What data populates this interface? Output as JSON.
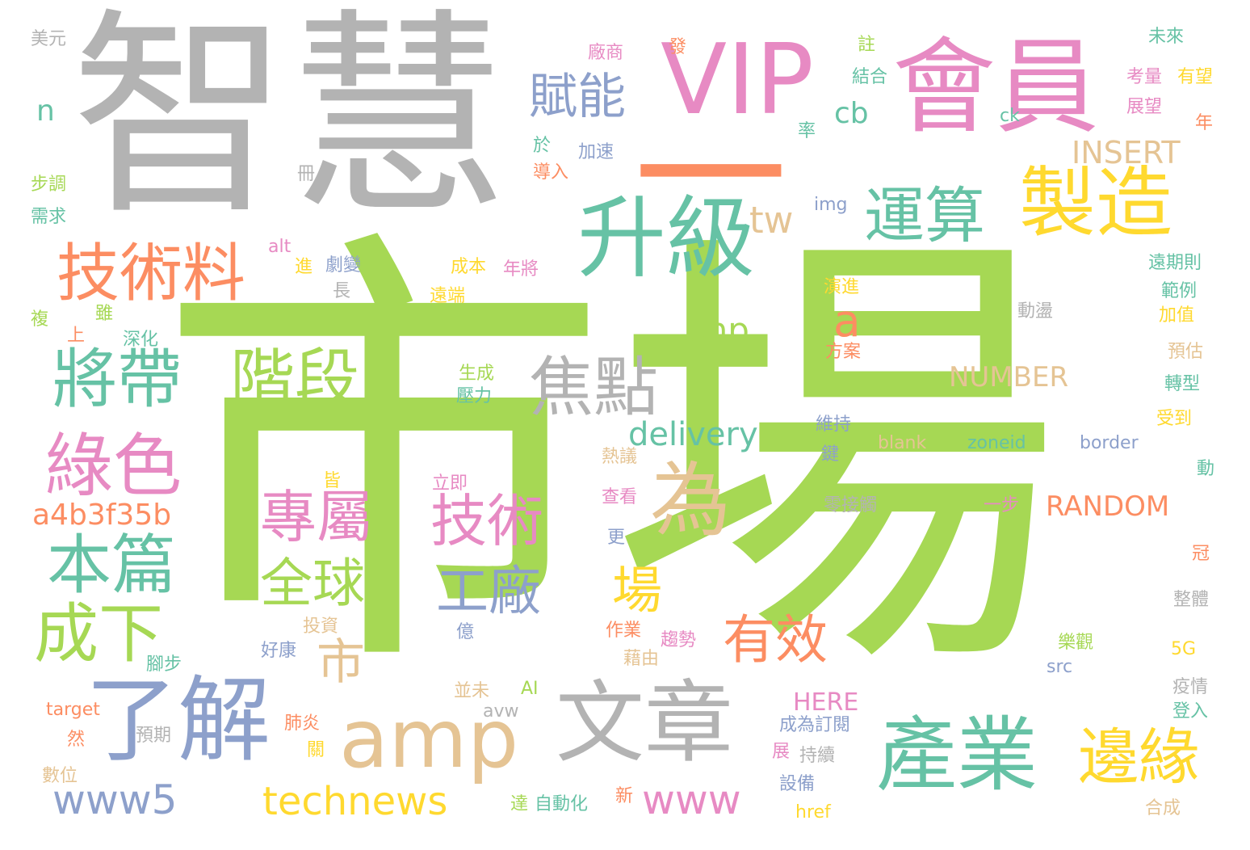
{
  "palette": {
    "green": "#a6d854",
    "gray": "#b3b3b3",
    "pink": "#e78ac3",
    "orange": "#fc8d62",
    "teal": "#66c2a5",
    "blue": "#8da0cb",
    "yellow": "#ffd92f",
    "tan": "#e5c494"
  },
  "words": [
    {
      "text": "市場",
      "color": "green"
    },
    {
      "text": "智慧",
      "color": "gray"
    },
    {
      "text": "一",
      "color": "orange"
    },
    {
      "text": "VIP",
      "color": "pink"
    },
    {
      "text": "會員",
      "color": "pink"
    },
    {
      "text": "升級",
      "color": "teal"
    },
    {
      "text": "製造",
      "color": "yellow"
    },
    {
      "text": "產業",
      "color": "teal"
    },
    {
      "text": "文章",
      "color": "gray"
    },
    {
      "text": "amp",
      "color": "tan"
    },
    {
      "text": "了解",
      "color": "blue"
    },
    {
      "text": "技術料",
      "color": "orange"
    },
    {
      "text": "將帶",
      "color": "teal"
    },
    {
      "text": "階段",
      "color": "green"
    },
    {
      "text": "焦點",
      "color": "gray"
    },
    {
      "text": "為",
      "color": "tan"
    },
    {
      "text": "運算",
      "color": "teal"
    },
    {
      "text": "綠色",
      "color": "pink"
    },
    {
      "text": "邊緣",
      "color": "yellow"
    },
    {
      "text": "本篇",
      "color": "teal"
    },
    {
      "text": "成下",
      "color": "green"
    },
    {
      "text": "賦能",
      "color": "blue"
    },
    {
      "text": "專屬",
      "color": "pink"
    },
    {
      "text": "技術",
      "color": "pink"
    },
    {
      "text": "全球",
      "color": "green"
    },
    {
      "text": "工廠",
      "color": "blue"
    },
    {
      "text": "有效",
      "color": "orange"
    },
    {
      "text": "www5",
      "color": "blue"
    },
    {
      "text": "technews",
      "color": "yellow"
    },
    {
      "text": "www",
      "color": "pink"
    },
    {
      "text": "場",
      "color": "yellow"
    },
    {
      "text": "市",
      "color": "tan"
    },
    {
      "text": "tw",
      "color": "tan"
    },
    {
      "text": "a",
      "color": "orange"
    },
    {
      "text": "delivery",
      "color": "teal"
    },
    {
      "text": "php",
      "color": "green"
    },
    {
      "text": "a4b3f35b",
      "color": "orange"
    },
    {
      "text": "INSERT",
      "color": "tan"
    },
    {
      "text": "NUMBER",
      "color": "tan"
    },
    {
      "text": "RANDOM",
      "color": "orange"
    },
    {
      "text": "cb",
      "color": "teal"
    },
    {
      "text": "n",
      "color": "teal"
    },
    {
      "text": "HERE",
      "color": "pink"
    },
    {
      "text": "美元",
      "color": "gray"
    },
    {
      "text": "冊",
      "color": "gray"
    },
    {
      "text": "步調",
      "color": "green"
    },
    {
      "text": "需求",
      "color": "teal"
    },
    {
      "text": "alt",
      "color": "pink"
    },
    {
      "text": "進",
      "color": "yellow"
    },
    {
      "text": "劇變",
      "color": "blue"
    },
    {
      "text": "長",
      "color": "gray"
    },
    {
      "text": "成本",
      "color": "yellow"
    },
    {
      "text": "年將",
      "color": "pink"
    },
    {
      "text": "遠端",
      "color": "yellow"
    },
    {
      "text": "複",
      "color": "green"
    },
    {
      "text": "雖",
      "color": "green"
    },
    {
      "text": "上",
      "color": "orange"
    },
    {
      "text": "深化",
      "color": "teal"
    },
    {
      "text": "廠商",
      "color": "pink"
    },
    {
      "text": "發",
      "color": "orange"
    },
    {
      "text": "註",
      "color": "green"
    },
    {
      "text": "結合",
      "color": "teal"
    },
    {
      "text": "未來",
      "color": "teal"
    },
    {
      "text": "考量",
      "color": "pink"
    },
    {
      "text": "有望",
      "color": "yellow"
    },
    {
      "text": "展望",
      "color": "pink"
    },
    {
      "text": "年",
      "color": "orange"
    },
    {
      "text": "ck",
      "color": "teal"
    },
    {
      "text": "率",
      "color": "teal"
    },
    {
      "text": "於",
      "color": "teal"
    },
    {
      "text": "加速",
      "color": "blue"
    },
    {
      "text": "導入",
      "color": "orange"
    },
    {
      "text": "img",
      "color": "blue"
    },
    {
      "text": "遠期則",
      "color": "teal"
    },
    {
      "text": "演進",
      "color": "yellow"
    },
    {
      "text": "範例",
      "color": "teal"
    },
    {
      "text": "動盪",
      "color": "gray"
    },
    {
      "text": "加值",
      "color": "yellow"
    },
    {
      "text": "方案",
      "color": "orange"
    },
    {
      "text": "預估",
      "color": "tan"
    },
    {
      "text": "轉型",
      "color": "teal"
    },
    {
      "text": "受到",
      "color": "yellow"
    },
    {
      "text": "生成",
      "color": "green"
    },
    {
      "text": "壓力",
      "color": "teal"
    },
    {
      "text": "維持",
      "color": "blue"
    },
    {
      "text": "鍵",
      "color": "blue"
    },
    {
      "text": "blank",
      "color": "tan"
    },
    {
      "text": "zoneid",
      "color": "teal"
    },
    {
      "text": "border",
      "color": "blue"
    },
    {
      "text": "動",
      "color": "teal"
    },
    {
      "text": "熱議",
      "color": "tan"
    },
    {
      "text": "皆",
      "color": "yellow"
    },
    {
      "text": "立即",
      "color": "pink"
    },
    {
      "text": "查看",
      "color": "pink"
    },
    {
      "text": "零接觸",
      "color": "gray"
    },
    {
      "text": "一步",
      "color": "pink"
    },
    {
      "text": "更",
      "color": "blue"
    },
    {
      "text": "冠",
      "color": "orange"
    },
    {
      "text": "整體",
      "color": "gray"
    },
    {
      "text": "投資",
      "color": "tan"
    },
    {
      "text": "億",
      "color": "blue"
    },
    {
      "text": "作業",
      "color": "orange"
    },
    {
      "text": "趨勢",
      "color": "pink"
    },
    {
      "text": "藉由",
      "color": "tan"
    },
    {
      "text": "樂觀",
      "color": "green"
    },
    {
      "text": "5G",
      "color": "yellow"
    },
    {
      "text": "src",
      "color": "blue"
    },
    {
      "text": "好康",
      "color": "blue"
    },
    {
      "text": "腳步",
      "color": "teal"
    },
    {
      "text": "並未",
      "color": "tan"
    },
    {
      "text": "AI",
      "color": "green"
    },
    {
      "text": "avw",
      "color": "gray"
    },
    {
      "text": "疫情",
      "color": "gray"
    },
    {
      "text": "登入",
      "color": "teal"
    },
    {
      "text": "target",
      "color": "orange"
    },
    {
      "text": "然",
      "color": "orange"
    },
    {
      "text": "預期",
      "color": "gray"
    },
    {
      "text": "肺炎",
      "color": "orange"
    },
    {
      "text": "關",
      "color": "yellow"
    },
    {
      "text": "成為訂閱",
      "color": "blue"
    },
    {
      "text": "展",
      "color": "pink"
    },
    {
      "text": "持續",
      "color": "gray"
    },
    {
      "text": "數位",
      "color": "tan"
    },
    {
      "text": "設備",
      "color": "blue"
    },
    {
      "text": "達",
      "color": "green"
    },
    {
      "text": "自動化",
      "color": "teal"
    },
    {
      "text": "新",
      "color": "orange"
    },
    {
      "text": "href",
      "color": "yellow"
    },
    {
      "text": "合成",
      "color": "tan"
    }
  ]
}
